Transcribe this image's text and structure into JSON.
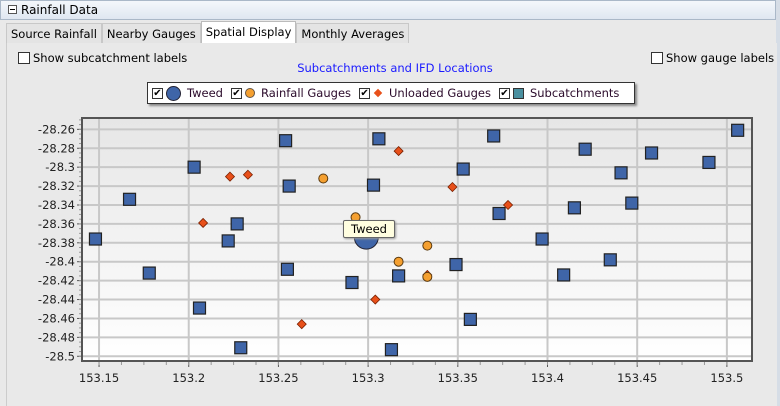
{
  "window": {
    "title": "Rainfall Data"
  },
  "tabs": [
    {
      "label": "Source Rainfall"
    },
    {
      "label": "Nearby Gauges"
    },
    {
      "label": "Spatial Display",
      "active": true
    },
    {
      "label": "Monthly Averages"
    }
  ],
  "options": {
    "subcatchment_labels": "Show subcatchment labels",
    "gauge_labels": "Show gauge labels",
    "subcatchment_checked": false,
    "gauge_checked": false
  },
  "tooltip": "Tweed",
  "chart_data": {
    "type": "scatter",
    "title": "Subcatchments and IFD Locations",
    "xlim": [
      153.1405,
      153.514
    ],
    "ylim": [
      -28.505,
      -28.248
    ],
    "xticks": [
      "153.15",
      "153.2",
      "153.25",
      "153.3",
      "153.35",
      "153.4",
      "153.45",
      "153.5"
    ],
    "yticks": [
      "-28.26",
      "-28.28",
      "-28.3",
      "-28.32",
      "-28.34",
      "-28.36",
      "-28.38",
      "-28.4",
      "-28.42",
      "-28.44",
      "-28.46",
      "-28.48",
      "-28.5"
    ],
    "grid": true,
    "legend_position": "top",
    "series": [
      {
        "name": "Tweed",
        "marker": "large-circle",
        "color": "#3f65a8",
        "checked": true,
        "points": [
          [
            153.299,
            -28.374
          ]
        ]
      },
      {
        "name": "Rainfall Gauges",
        "marker": "circle",
        "color": "#f5a030",
        "checked": true,
        "points": [
          [
            153.275,
            -28.312
          ],
          [
            153.293,
            -28.353
          ],
          [
            153.317,
            -28.4
          ],
          [
            153.333,
            -28.383
          ],
          [
            153.333,
            -28.416
          ]
        ]
      },
      {
        "name": "Unloaded Gauges",
        "marker": "diamond",
        "color": "#e8501a",
        "checked": true,
        "points": [
          [
            153.223,
            -28.31
          ],
          [
            153.233,
            -28.308
          ],
          [
            153.208,
            -28.359
          ],
          [
            153.317,
            -28.283
          ],
          [
            153.304,
            -28.44
          ],
          [
            153.263,
            -28.466
          ],
          [
            153.347,
            -28.321
          ],
          [
            153.378,
            -28.34
          ],
          [
            153.333,
            -28.414
          ]
        ]
      },
      {
        "name": "Subcatchments",
        "marker": "square",
        "color": "#3f65a8",
        "legend_color": "#4a90a0",
        "checked": true,
        "points": [
          [
            153.148,
            -28.376
          ],
          [
            153.167,
            -28.334
          ],
          [
            153.178,
            -28.412
          ],
          [
            153.203,
            -28.3
          ],
          [
            153.206,
            -28.449
          ],
          [
            153.229,
            -28.491
          ],
          [
            153.227,
            -28.36
          ],
          [
            153.222,
            -28.378
          ],
          [
            153.254,
            -28.272
          ],
          [
            153.256,
            -28.32
          ],
          [
            153.255,
            -28.408
          ],
          [
            153.291,
            -28.422
          ],
          [
            153.303,
            -28.319
          ],
          [
            153.306,
            -28.27
          ],
          [
            153.313,
            -28.493
          ],
          [
            153.317,
            -28.415
          ],
          [
            153.37,
            -28.267
          ],
          [
            153.353,
            -28.302
          ],
          [
            153.373,
            -28.349
          ],
          [
            153.349,
            -28.403
          ],
          [
            153.357,
            -28.461
          ],
          [
            153.397,
            -28.376
          ],
          [
            153.409,
            -28.414
          ],
          [
            153.415,
            -28.343
          ],
          [
            153.421,
            -28.281
          ],
          [
            153.441,
            -28.306
          ],
          [
            153.435,
            -28.398
          ],
          [
            153.447,
            -28.338
          ],
          [
            153.458,
            -28.285
          ],
          [
            153.49,
            -28.295
          ],
          [
            153.506,
            -28.261
          ]
        ]
      }
    ]
  }
}
